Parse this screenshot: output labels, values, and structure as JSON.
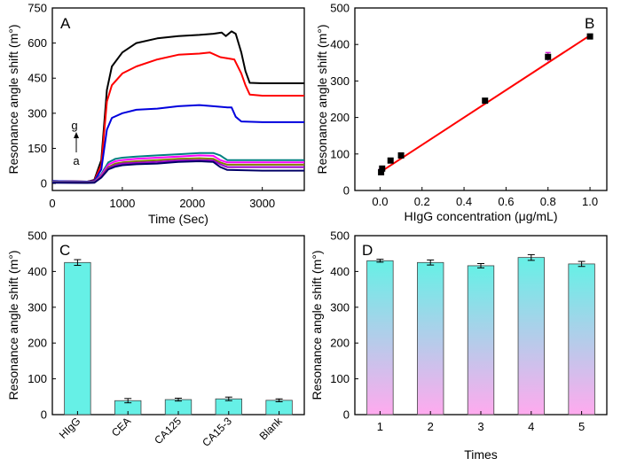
{
  "chart_data": [
    {
      "panel": "A",
      "type": "line",
      "xlabel": "Time (Sec)",
      "ylabel": "Resonance angle shift (m°)",
      "xlim": [
        0,
        3600
      ],
      "ylim": [
        -30,
        750
      ],
      "xticks": [
        "0",
        "1000",
        "2000",
        "3000"
      ],
      "yticks": [
        "0",
        "150",
        "300",
        "450",
        "600",
        "750"
      ],
      "annotations": [
        "g",
        "a"
      ],
      "series": [
        {
          "color": "#000000",
          "x": [
            0,
            500,
            600,
            700,
            780,
            850,
            1000,
            1200,
            1500,
            1800,
            2100,
            2300,
            2420,
            2480,
            2560,
            2620,
            2700,
            2760,
            2820,
            3000,
            3600
          ],
          "y": [
            10,
            8,
            15,
            100,
            400,
            500,
            560,
            600,
            620,
            630,
            635,
            640,
            645,
            630,
            650,
            640,
            560,
            480,
            430,
            428,
            428
          ]
        },
        {
          "color": "#ff0000",
          "x": [
            0,
            500,
            600,
            700,
            780,
            850,
            1000,
            1200,
            1500,
            1800,
            2100,
            2250,
            2400,
            2600,
            2700,
            2760,
            2820,
            3000,
            3600
          ],
          "y": [
            10,
            8,
            12,
            80,
            350,
            420,
            470,
            500,
            530,
            550,
            555,
            560,
            540,
            530,
            470,
            420,
            380,
            375,
            375
          ]
        },
        {
          "color": "#0000dd",
          "x": [
            0,
            500,
            600,
            700,
            780,
            850,
            1000,
            1200,
            1500,
            1800,
            2100,
            2300,
            2500,
            2560,
            2620,
            2700,
            3000,
            3600
          ],
          "y": [
            10,
            8,
            10,
            60,
            230,
            280,
            300,
            315,
            320,
            330,
            335,
            330,
            325,
            325,
            285,
            265,
            262,
            262
          ]
        },
        {
          "color": "#008080",
          "x": [
            0,
            500,
            600,
            700,
            800,
            900,
            1000,
            1200,
            1500,
            1800,
            2100,
            2300,
            2400,
            2500,
            3000,
            3600
          ],
          "y": [
            8,
            7,
            8,
            40,
            90,
            105,
            110,
            115,
            120,
            125,
            130,
            130,
            120,
            100,
            100,
            100
          ]
        },
        {
          "color": "#ff00ff",
          "x": [
            0,
            500,
            600,
            700,
            800,
            900,
            1000,
            1200,
            1500,
            1800,
            2100,
            2300,
            2400,
            2500,
            3000,
            3600
          ],
          "y": [
            6,
            5,
            6,
            35,
            80,
            95,
            100,
            105,
            110,
            115,
            120,
            118,
            100,
            90,
            90,
            90
          ]
        },
        {
          "color": "#808000",
          "x": [
            0,
            500,
            600,
            700,
            800,
            900,
            1000,
            1200,
            1500,
            1800,
            2100,
            2300,
            2400,
            2500,
            3000,
            3600
          ],
          "y": [
            5,
            4,
            5,
            30,
            70,
            85,
            90,
            95,
            100,
            105,
            108,
            105,
            90,
            80,
            80,
            80
          ]
        },
        {
          "color": "#9900cc",
          "x": [
            0,
            500,
            600,
            700,
            800,
            900,
            1000,
            1200,
            1500,
            1800,
            2100,
            2300,
            2400,
            2500,
            3000,
            3600
          ],
          "y": [
            4,
            3,
            4,
            28,
            65,
            78,
            85,
            88,
            92,
            98,
            100,
            98,
            82,
            70,
            70,
            70
          ]
        },
        {
          "color": "#000066",
          "x": [
            0,
            500,
            600,
            700,
            800,
            900,
            1000,
            1200,
            1500,
            1800,
            2100,
            2300,
            2400,
            2500,
            3000,
            3600
          ],
          "y": [
            3,
            2,
            3,
            25,
            60,
            72,
            78,
            82,
            85,
            92,
            95,
            92,
            70,
            58,
            55,
            55
          ]
        }
      ]
    },
    {
      "panel": "B",
      "type": "scatter",
      "xlabel": "HIgG concentration (μg/mL)",
      "ylabel": "Resonance angle shift (m°)",
      "xlim": [
        -0.12,
        1.08
      ],
      "ylim": [
        0,
        500
      ],
      "xticks": [
        "0.0",
        "0.2",
        "0.4",
        "0.6",
        "0.8",
        "1.0"
      ],
      "yticks": [
        "0",
        "100",
        "200",
        "300",
        "400",
        "500"
      ],
      "x": [
        0.005,
        0.01,
        0.05,
        0.1,
        0.5,
        0.8,
        1.0
      ],
      "y": [
        50,
        60,
        82,
        96,
        246,
        366,
        422
      ],
      "yerr": [
        8,
        6,
        5,
        6,
        6,
        12,
        5
      ],
      "fit": {
        "x": [
          0,
          1.0
        ],
        "y": [
          50,
          425
        ],
        "color": "#ff0000"
      }
    },
    {
      "panel": "C",
      "type": "bar",
      "ylabel": "Resonance angle shift (m°)",
      "categories": [
        "HIgG",
        "CEA",
        "CA125",
        "CA15-3",
        "Blank"
      ],
      "values": [
        425,
        39,
        42,
        44,
        40
      ],
      "yerr": [
        8,
        6,
        4,
        5,
        4
      ],
      "ylim": [
        0,
        500
      ],
      "yticks": [
        "0",
        "100",
        "200",
        "300",
        "400",
        "500"
      ],
      "bar_color": "#66f0e6"
    },
    {
      "panel": "D",
      "type": "bar",
      "xlabel": "Times",
      "ylabel": "Resonance angle shift (m°)",
      "categories": [
        "1",
        "2",
        "3",
        "4",
        "5"
      ],
      "values": [
        430,
        425,
        416,
        439,
        421
      ],
      "yerr": [
        4,
        7,
        6,
        8,
        7
      ],
      "ylim": [
        0,
        500
      ],
      "yticks": [
        "0",
        "100",
        "200",
        "300",
        "400",
        "500"
      ],
      "gradient": [
        "#66f0e6",
        "#ffaaee"
      ]
    }
  ]
}
